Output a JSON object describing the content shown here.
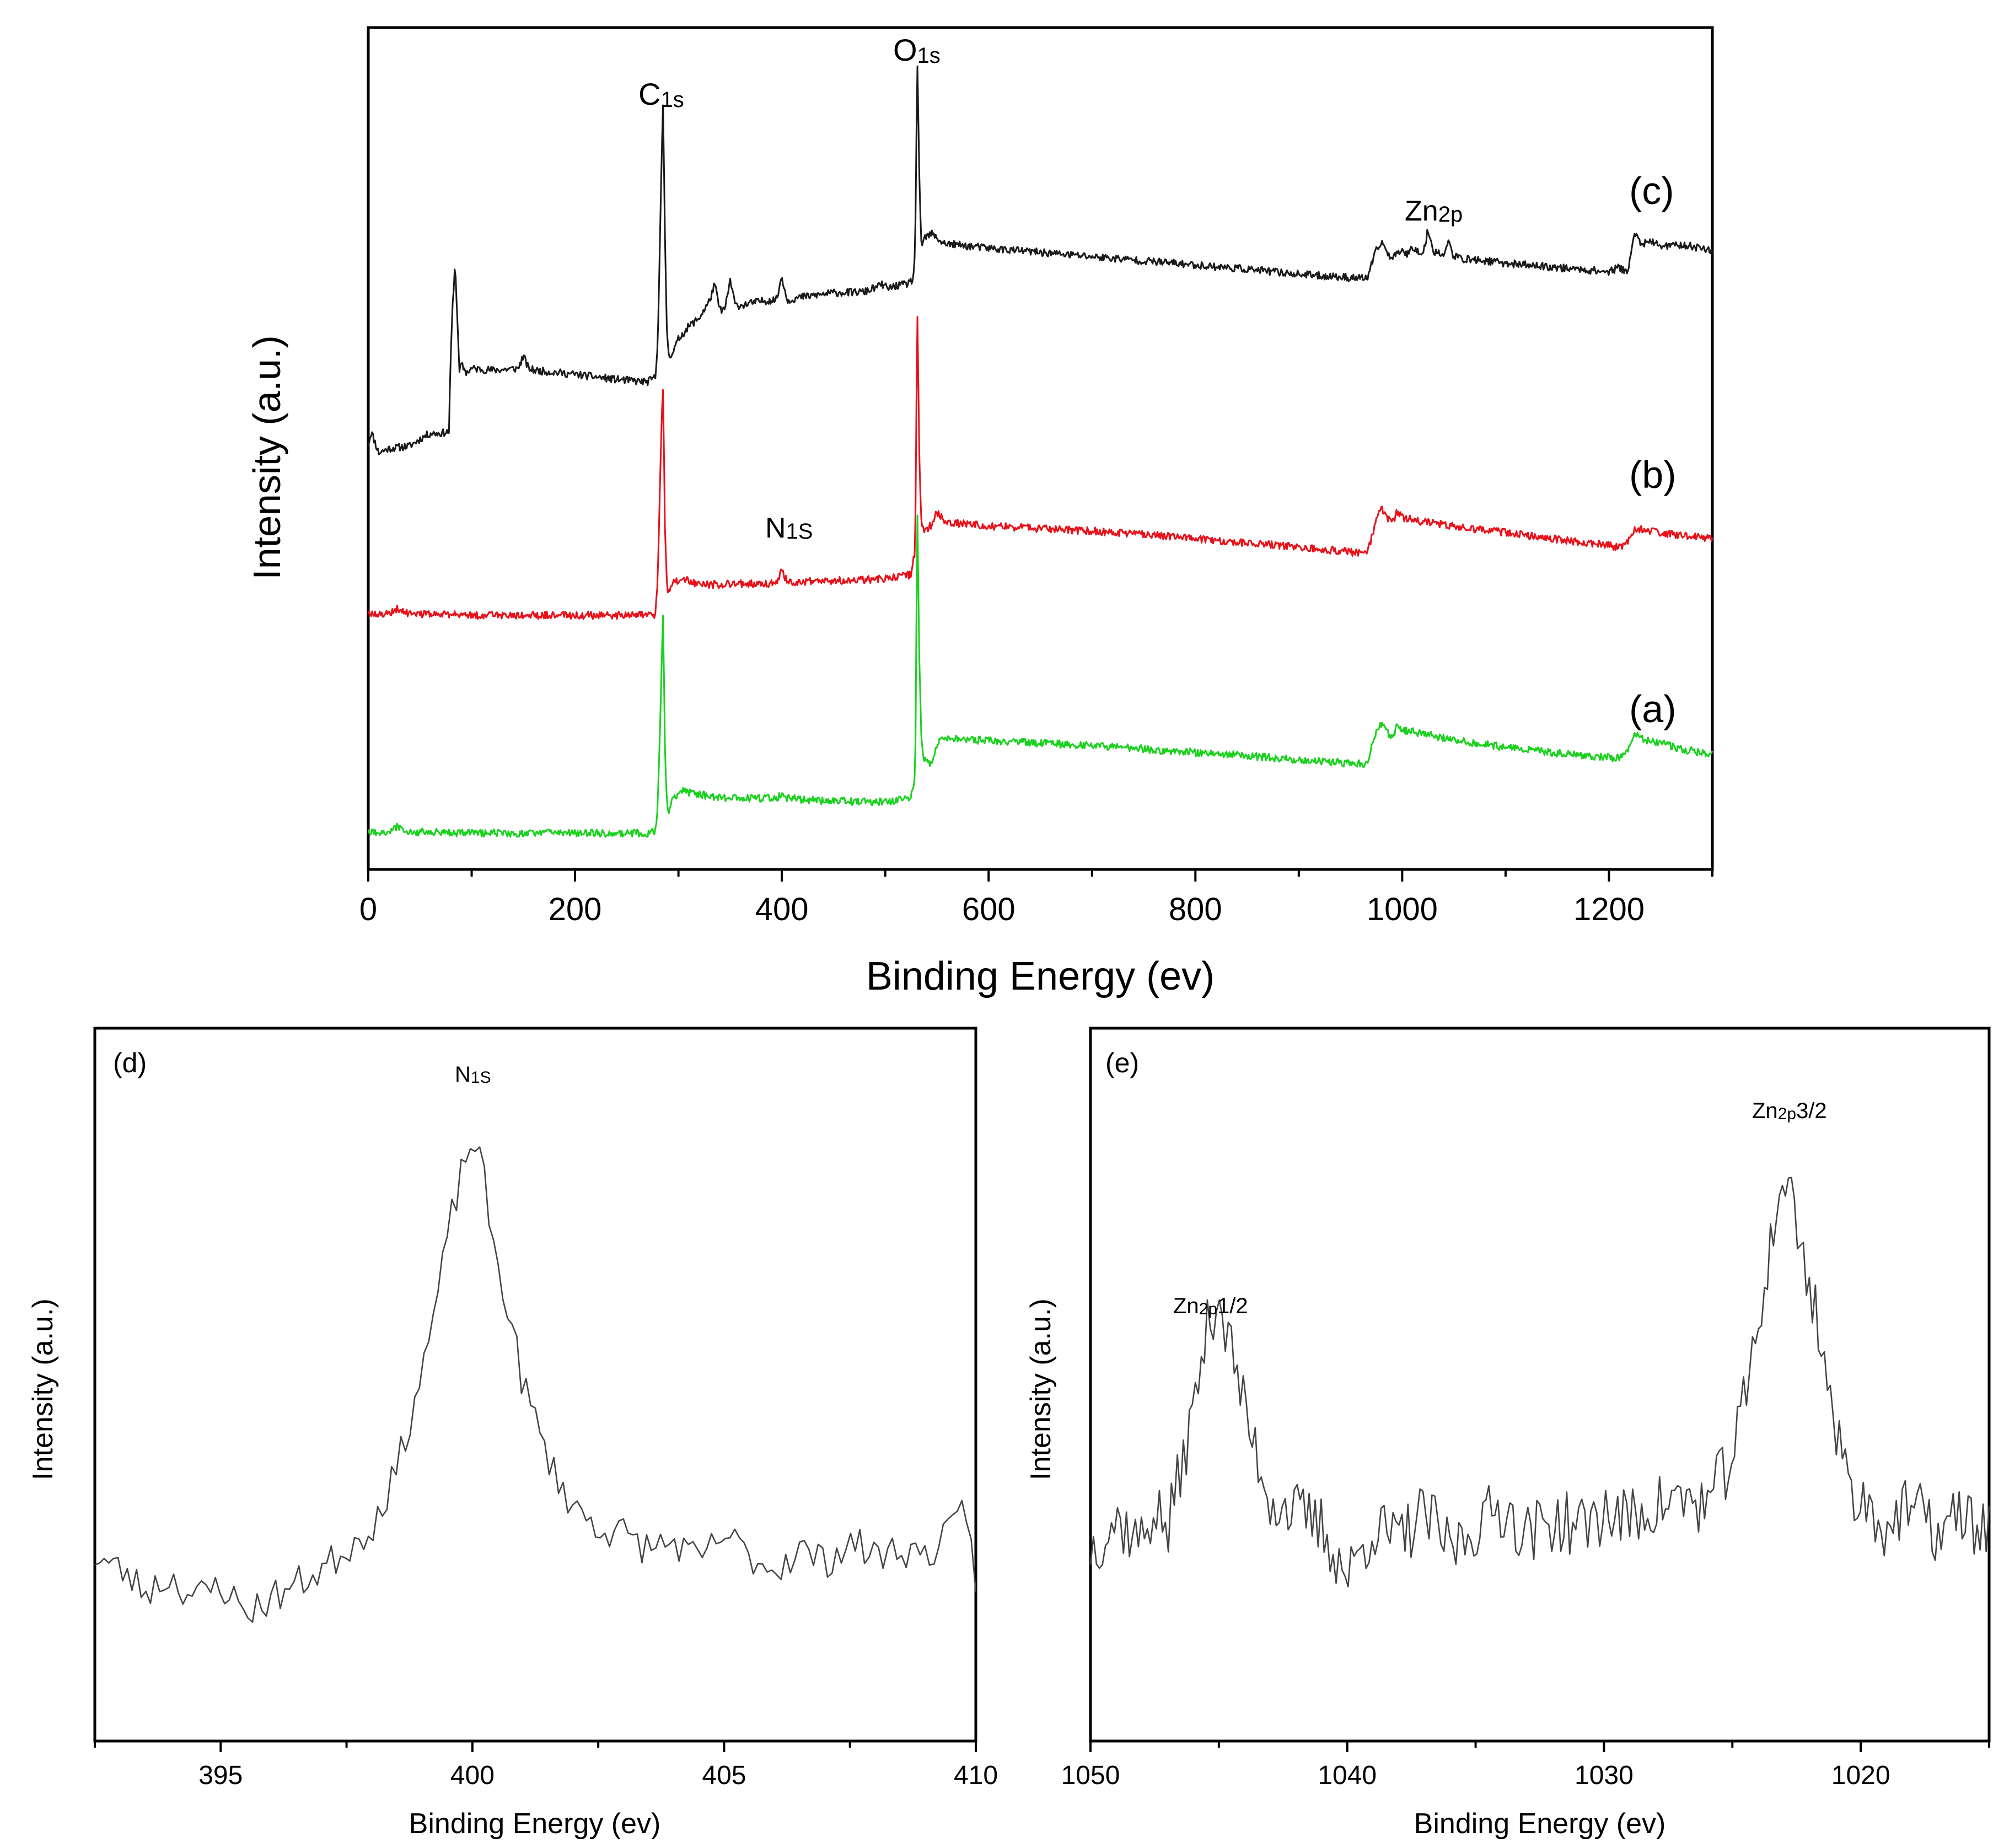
{
  "chart_data": [
    {
      "panel_label": "",
      "type": "line",
      "title": "",
      "xlabel": "Binding Energy (ev)",
      "ylabel": "Intensity (a.u.)",
      "xlim": [
        0,
        1300
      ],
      "ylim": [
        0,
        100
      ],
      "xticks": [
        0,
        200,
        400,
        600,
        800,
        1000,
        1200
      ],
      "xtick_labels": [
        "0",
        "200",
        "400",
        "600",
        "800",
        "1000",
        "1200"
      ],
      "grid": false,
      "series": [
        {
          "name": "(c)",
          "color": "#1a1a1a",
          "x": [
            0,
            3,
            10,
            20,
            40,
            55,
            60,
            70,
            78,
            80,
            82,
            84,
            86,
            88,
            90,
            95,
            100,
            120,
            145,
            150,
            155,
            160,
            200,
            240,
            270,
            278,
            280,
            283,
            285,
            287,
            289,
            291,
            295,
            300,
            310,
            320,
            330,
            335,
            340,
            345,
            350,
            355,
            360,
            380,
            395,
            400,
            405,
            420,
            450,
            480,
            498,
            502,
            510,
            520,
            527,
            529,
            531,
            533,
            535,
            538,
            545,
            550,
            555,
            560,
            600,
            650,
            700,
            750,
            800,
            850,
            900,
            950,
            966,
            975,
            980,
            990,
            1000,
            1005,
            1010,
            1020,
            1025,
            1030,
            1040,
            1045,
            1050,
            1060,
            1080,
            1100,
            1150,
            1200,
            1210,
            1218,
            1225,
            1232,
            1240,
            1255,
            1270,
            1290,
            1300
          ],
          "y": [
            50.5,
            52,
            49.5,
            50,
            50.3,
            51.5,
            51.8,
            51.8,
            52,
            62,
            68,
            72,
            66,
            59,
            60,
            59,
            59.5,
            59.3,
            59.5,
            61,
            59.5,
            59.3,
            58.8,
            58.2,
            57.9,
            58.5,
            63,
            80,
            91,
            75,
            63,
            61,
            61.5,
            63,
            64.5,
            65.5,
            67.5,
            69.5,
            66.5,
            66.5,
            70,
            67,
            67,
            67.5,
            67.7,
            70.5,
            67.6,
            68,
            68.5,
            68.6,
            69.5,
            69,
            69.3,
            69.5,
            70,
            74,
            96,
            82,
            74,
            75,
            75.5,
            75,
            74.5,
            74.3,
            73.8,
            73.3,
            72.8,
            72.3,
            71.8,
            71.3,
            70.7,
            70.3,
            70.2,
            73.5,
            74.5,
            72.5,
            73.8,
            73,
            74,
            73,
            76,
            73.5,
            73,
            74.5,
            72.8,
            72.5,
            72.3,
            72,
            71.5,
            71,
            71.5,
            71,
            75.5,
            74.3,
            74.5,
            74,
            74.2,
            73.8,
            73.5
          ]
        },
        {
          "name": "(b)",
          "color": "#e8111a",
          "x": [
            0,
            20,
            28,
            35,
            60,
            100,
            200,
            270,
            278,
            280,
            283,
            285,
            287,
            289,
            291,
            295,
            305,
            315,
            330,
            350,
            395,
            400,
            405,
            420,
            450,
            500,
            525,
            529,
            531,
            533,
            535,
            538,
            545,
            550,
            555,
            560,
            600,
            650,
            700,
            750,
            800,
            850,
            900,
            950,
            966,
            975,
            980,
            990,
            995,
            1000,
            1020,
            1050,
            1100,
            1150,
            1200,
            1210,
            1218,
            1225,
            1235,
            1250,
            1270,
            1290,
            1300
          ],
          "y": [
            30.3,
            30.5,
            31,
            30.5,
            30.3,
            30.2,
            30.2,
            30.2,
            30.3,
            35,
            50,
            58,
            40,
            33.5,
            33,
            34,
            34.5,
            34,
            33.8,
            33.9,
            34,
            35.6,
            34.2,
            34.2,
            34.3,
            34.5,
            35,
            38,
            67,
            49,
            41,
            40,
            41,
            42.5,
            41.8,
            41.2,
            40.8,
            40.5,
            40.2,
            39.8,
            39.3,
            38.8,
            38.3,
            37.7,
            37.4,
            41.5,
            43,
            41,
            42.5,
            41.8,
            41.3,
            40.8,
            40,
            39.2,
            38.5,
            38.2,
            38.8,
            40.5,
            40.3,
            40,
            39.7,
            39.5,
            39.3
          ]
        },
        {
          "name": "(a)",
          "color": "#1bd11f",
          "x": [
            0,
            20,
            28,
            35,
            60,
            100,
            200,
            270,
            278,
            280,
            283,
            285,
            287,
            289,
            291,
            295,
            305,
            315,
            330,
            350,
            395,
            400,
            405,
            420,
            450,
            500,
            525,
            529,
            531,
            533,
            535,
            538,
            545,
            550,
            555,
            560,
            600,
            650,
            700,
            750,
            800,
            850,
            900,
            950,
            966,
            975,
            980,
            990,
            995,
            1000,
            1020,
            1050,
            1100,
            1150,
            1200,
            1210,
            1218,
            1225,
            1235,
            1250,
            1270,
            1290,
            1300
          ],
          "y": [
            4.3,
            4.5,
            5,
            4.5,
            4.4,
            4.3,
            4.3,
            4.3,
            4.5,
            8,
            20,
            31,
            14,
            7.5,
            7,
            8.5,
            9.3,
            9,
            8.7,
            8.5,
            8.4,
            9.1,
            8.5,
            8.3,
            8.1,
            8,
            8.5,
            11,
            43,
            25,
            15,
            13,
            12.5,
            14.5,
            15.8,
            15.5,
            15.3,
            15,
            14.7,
            14.3,
            13.9,
            13.5,
            13,
            12.6,
            12.5,
            16.5,
            17.4,
            15.5,
            17,
            16.6,
            16.1,
            15.4,
            14.5,
            13.8,
            13.3,
            13.2,
            14.2,
            16,
            15.4,
            15,
            14.3,
            13.9,
            13.7
          ]
        }
      ],
      "curve_labels": [
        "(c)",
        "(b)",
        "(a)"
      ],
      "annotations": [
        {
          "text": "C",
          "sub": "1s",
          "x": 285,
          "y": 94
        },
        {
          "text": "O",
          "sub": "1s",
          "x": 533,
          "y": 99
        },
        {
          "text": "N",
          "sub": "1S",
          "x": 400,
          "y": 38.5
        },
        {
          "text": "Zn",
          "sub": "2p",
          "x": 1020,
          "y": 77.5
        }
      ]
    },
    {
      "panel_label": "(d)",
      "type": "line",
      "title": "",
      "xlabel": "Binding Energy (ev)",
      "ylabel": "Intensity (a.u.)",
      "xlim": [
        392.5,
        410
      ],
      "ylim": [
        0,
        100
      ],
      "xticks": [
        395,
        400,
        405,
        410
      ],
      "xtick_labels": [
        "395",
        "400",
        "405",
        "410"
      ],
      "grid": false,
      "series": [
        {
          "name": "N1s",
          "color": "#444444",
          "x": [
            392.5,
            393.0,
            393.5,
            394.0,
            394.5,
            395.0,
            395.5,
            396.0,
            396.5,
            397.0,
            397.5,
            398.0,
            398.5,
            399.0,
            399.3,
            399.6,
            399.8,
            400.0,
            400.2,
            400.4,
            400.6,
            400.8,
            401.0,
            401.3,
            401.6,
            402.0,
            402.5,
            403.0,
            403.5,
            404.0,
            404.5,
            405.0,
            405.5,
            406.0,
            406.5,
            407.0,
            407.5,
            408.0,
            408.5,
            409.0,
            409.5,
            409.8,
            410.0
          ],
          "y": [
            26,
            24,
            21,
            23,
            20,
            22,
            18,
            20,
            22,
            24,
            27,
            30,
            38,
            52,
            62,
            74,
            80,
            85,
            80,
            70,
            64,
            58,
            50,
            44,
            38,
            33,
            30,
            29,
            27,
            28,
            25,
            29,
            26,
            24,
            27,
            25,
            28,
            26,
            27,
            26,
            29,
            33,
            23
          ]
        }
      ],
      "annotations": [
        {
          "text": "N",
          "sub": "1S",
          "x": 400,
          "y": 88
        }
      ]
    },
    {
      "panel_label": "(e)",
      "type": "line",
      "title": "",
      "xlabel": "Binding Energy (ev)",
      "ylabel": "Intensity (a.u.)",
      "xlim": [
        1050,
        1015
      ],
      "ylim": [
        0,
        100
      ],
      "xticks": [
        1050,
        1040,
        1030,
        1020
      ],
      "xtick_labels": [
        "1050",
        "1040",
        "1030",
        "1020"
      ],
      "grid": false,
      "series": [
        {
          "name": "Zn2p",
          "color": "#444444",
          "x": [
            1050,
            1049,
            1048,
            1047.5,
            1047,
            1046.5,
            1046,
            1045.6,
            1045.3,
            1045,
            1044.7,
            1044.3,
            1044,
            1043.5,
            1043,
            1042,
            1041,
            1040,
            1039,
            1038,
            1037,
            1036,
            1035,
            1034,
            1033,
            1032,
            1031,
            1030,
            1029,
            1028,
            1027,
            1026,
            1025,
            1024.5,
            1024,
            1023.6,
            1023.2,
            1023,
            1022.8,
            1022.4,
            1022,
            1021.6,
            1021.2,
            1020.8,
            1020.4,
            1020,
            1019.5,
            1019,
            1018,
            1017,
            1016,
            1015.5
          ],
          "y": [
            27,
            31,
            28,
            33,
            29,
            38,
            46,
            55,
            60,
            63,
            57,
            52,
            46,
            40,
            34,
            32,
            30,
            23,
            30,
            28,
            32,
            27,
            30,
            33,
            29,
            31,
            30,
            32,
            31,
            33,
            34,
            33,
            40,
            48,
            58,
            68,
            75,
            80,
            78,
            70,
            64,
            58,
            48,
            40,
            36,
            34,
            32,
            30,
            33,
            29,
            32,
            30
          ]
        }
      ],
      "annotations": [
        {
          "text": "Zn",
          "sub": "2p",
          "suffix": "1/2",
          "x": 1045.3,
          "y": 66
        },
        {
          "text": "Zn",
          "sub": "2p",
          "suffix": "3/2",
          "x": 1022.8,
          "y": 83
        }
      ]
    }
  ]
}
